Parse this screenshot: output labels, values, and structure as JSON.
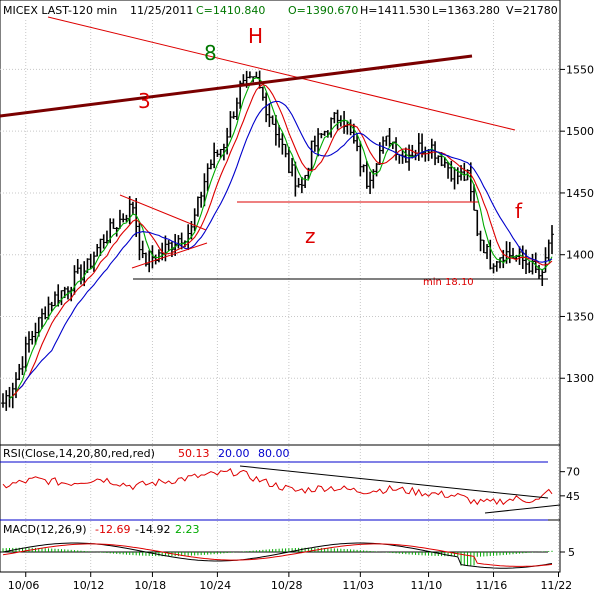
{
  "chart_data": [
    {
      "type": "candlestick",
      "panel": "price",
      "header": {
        "symbol": "MICEX LAST-120 min",
        "date": "11/25/2011",
        "close": "C=1410.840",
        "open": "O=1390.670",
        "high": "H=1411.530",
        "low": "L=1363.280",
        "volume": "V=21780"
      },
      "ylim": [
        1250,
        1590
      ],
      "yticks": [
        1300,
        1350,
        1400,
        1450,
        1500,
        1550
      ],
      "x_dates": [
        "10/06",
        "10/12",
        "10/18",
        "10/24",
        "10/28",
        "11/03",
        "11/10",
        "11/16",
        "11/22"
      ],
      "close_anchors": [
        [
          0,
          1280
        ],
        [
          4,
          1300
        ],
        [
          8,
          1330
        ],
        [
          14,
          1360
        ],
        [
          20,
          1375
        ],
        [
          26,
          1390
        ],
        [
          30,
          1410
        ],
        [
          35,
          1425
        ],
        [
          40,
          1440
        ],
        [
          43,
          1395
        ],
        [
          48,
          1400
        ],
        [
          53,
          1412
        ],
        [
          58,
          1420
        ],
        [
          63,
          1470
        ],
        [
          68,
          1490
        ],
        [
          73,
          1535
        ],
        [
          78,
          1540
        ],
        [
          81,
          1520
        ],
        [
          85,
          1495
        ],
        [
          88,
          1470
        ],
        [
          92,
          1455
        ],
        [
          95,
          1485
        ],
        [
          99,
          1500
        ],
        [
          104,
          1515
        ],
        [
          108,
          1490
        ],
        [
          112,
          1460
        ],
        [
          115,
          1480
        ],
        [
          119,
          1495
        ],
        [
          123,
          1480
        ],
        [
          127,
          1485
        ],
        [
          131,
          1490
        ],
        [
          135,
          1478
        ],
        [
          139,
          1465
        ],
        [
          143,
          1462
        ],
        [
          146,
          1420
        ],
        [
          150,
          1395
        ],
        [
          154,
          1402
        ],
        [
          158,
          1398
        ],
        [
          162,
          1392
        ],
        [
          166,
          1380
        ],
        [
          168,
          1410
        ]
      ],
      "ma_red": "red moving average",
      "ma_green": "green moving average",
      "ma_blue": "blue moving average",
      "annotations": {
        "wave_8": "8",
        "wave_h": "H",
        "wave_3": "3",
        "wave_z": "z",
        "wave_f": "f",
        "support_label": "min 18.10"
      },
      "colors": {
        "red": "#dd0000",
        "green": "#00aa00",
        "blue": "#0000cc",
        "darkred": "#7a0000",
        "wave_green": "#007700"
      }
    },
    {
      "type": "line",
      "panel": "rsi",
      "title": "RSI(Close,14,20,80,red,red)",
      "values_shown": [
        "50.13",
        "20.00",
        "80.00"
      ],
      "yticks": [
        45,
        70
      ],
      "levels": [
        20,
        80
      ],
      "anchors": [
        [
          0,
          55
        ],
        [
          10,
          62
        ],
        [
          20,
          58
        ],
        [
          30,
          63
        ],
        [
          40,
          55
        ],
        [
          50,
          60
        ],
        [
          60,
          65
        ],
        [
          72,
          70
        ],
        [
          80,
          60
        ],
        [
          90,
          50
        ],
        [
          100,
          54
        ],
        [
          110,
          50
        ],
        [
          120,
          52
        ],
        [
          130,
          48
        ],
        [
          140,
          45
        ],
        [
          146,
          38
        ],
        [
          150,
          38
        ],
        [
          158,
          42
        ],
        [
          165,
          40
        ],
        [
          168,
          50
        ]
      ]
    },
    {
      "type": "line",
      "panel": "macd",
      "title": "MACD(12,26,9)",
      "values_shown": [
        "-12.69",
        "-14.92",
        "2.23"
      ],
      "yticks": [
        5
      ]
    }
  ]
}
